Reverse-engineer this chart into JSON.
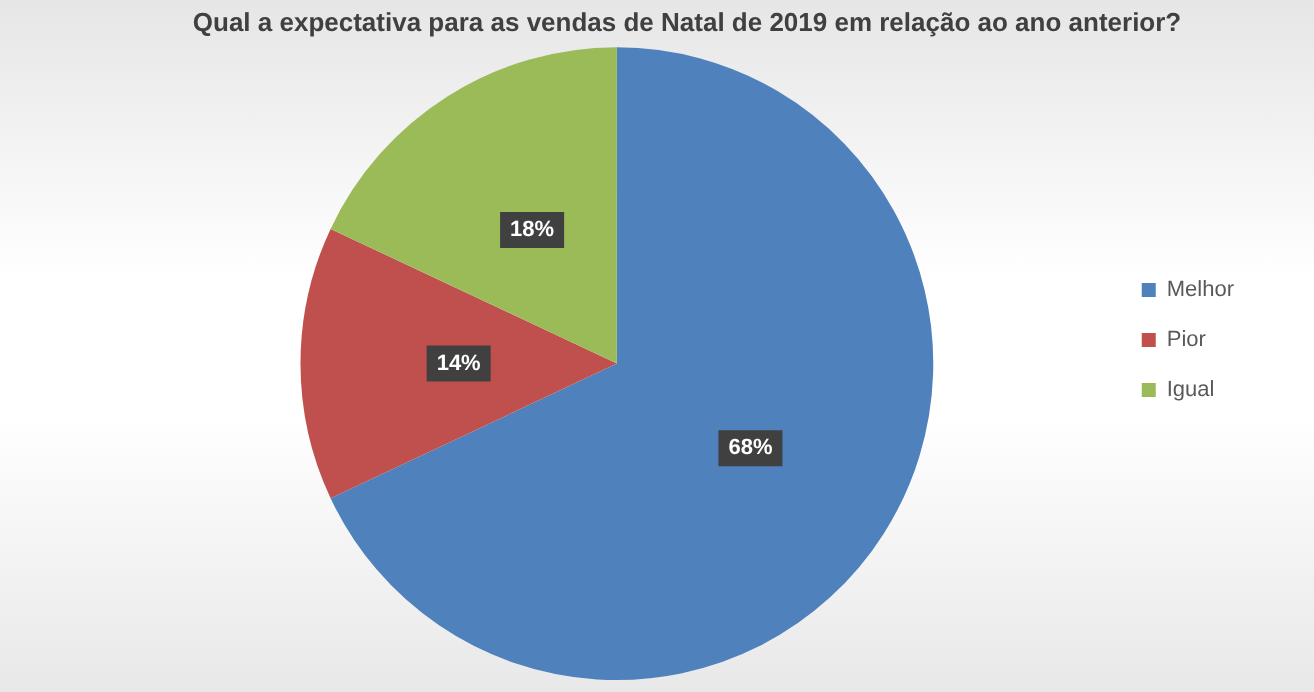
{
  "chart_data": {
    "type": "pie",
    "title": "Qual a expectativa para as vendas de Natal de 2019 em relação ao ano anterior?",
    "categories": [
      "Melhor",
      "Pior",
      "Igual"
    ],
    "values": [
      68,
      14,
      18
    ],
    "colors": [
      "#4f81bd",
      "#c0504d",
      "#9bbb59"
    ],
    "value_labels": [
      "68%",
      "14%",
      "18%"
    ],
    "legend": "right"
  }
}
